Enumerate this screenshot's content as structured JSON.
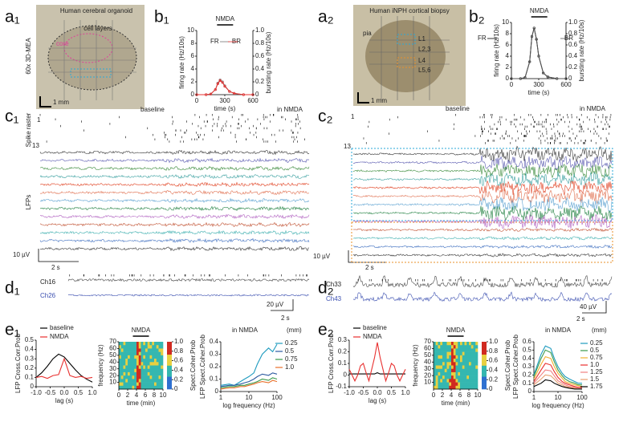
{
  "figure": {
    "panel_labels": {
      "a1": "a₁",
      "b1": "b₁",
      "a2": "a₂",
      "b2": "b₂",
      "c1": "c₁",
      "c2": "c₂",
      "d1": "d₁",
      "d2": "d₂",
      "e1": "e₁",
      "e2": "e₂"
    },
    "a1": {
      "title": "Human cerebral organoid",
      "layers": "cell layers",
      "core": "core",
      "device": "60x 3D-MEA",
      "scale": "1 mm"
    },
    "a2": {
      "title": "Human iNPH cortical biopsy",
      "pia": "pia",
      "layers": [
        "L1",
        "L2,3",
        "L4",
        "L5,6"
      ],
      "scale": "1 mm"
    },
    "c1": {
      "first": "1",
      "last": "13",
      "raster": "Spike raster",
      "lfp": "LFPs",
      "baseline": "baseline",
      "nmda": "in NMDA",
      "vscale": "10 µV",
      "tscale": "2 s"
    },
    "c2": {
      "first": "1",
      "last": "13",
      "baseline": "baseline",
      "nmda": "in NMDA",
      "vscale": "10 µV",
      "tscale": "2 s"
    },
    "d1": {
      "ch_a": "Ch16",
      "ch_b": "Ch26",
      "vscale": "20 µV",
      "tscale": "2 s"
    },
    "d2": {
      "ch_a": "Ch33",
      "ch_b": "Ch43",
      "vscale": "40 µV",
      "tscale": "2 s"
    }
  },
  "chart_data": [
    {
      "type": "line",
      "title": "NMDA",
      "xlabel": "time (s)",
      "ylabel": "firing rate (Hz/10s)",
      "y2label": "bursting rate (Hz/10s)",
      "x": [
        0,
        100,
        150,
        200,
        225,
        250,
        275,
        300,
        350,
        400,
        500,
        600
      ],
      "xlim": [
        0,
        600
      ],
      "xticks": [
        0,
        300,
        600
      ],
      "ylim": [
        0,
        10
      ],
      "yticks": [
        0,
        2,
        4,
        6,
        8,
        10
      ],
      "y2lim": [
        0,
        1
      ],
      "y2ticks": [
        0,
        0.2,
        0.4,
        0.6,
        0.8,
        {
          "value": 1,
          "label": "1.0"
        }
      ],
      "series": [
        {
          "name": "FR",
          "color": "#777777",
          "values": [
            0,
            0,
            0.1,
            0.8,
            1.8,
            2.3,
            2,
            1.4,
            0.5,
            0.2,
            0,
            0
          ]
        },
        {
          "name": "BR",
          "color": "#e8302f",
          "axis": "y2",
          "values": [
            0,
            0,
            0.01,
            0.08,
            0.17,
            0.22,
            0.19,
            0.13,
            0.05,
            0.02,
            0,
            0
          ]
        }
      ]
    },
    {
      "type": "line",
      "title": "NMDA",
      "xlabel": "time (s)",
      "ylabel": "firing rate (Hz/10s)",
      "y2label": "bursting rate (Hz/10s)",
      "x": [
        0,
        100,
        150,
        200,
        225,
        250,
        275,
        300,
        350,
        400,
        500,
        600
      ],
      "xlim": [
        0,
        600
      ],
      "xticks": [
        0,
        300,
        600
      ],
      "ylim": [
        0,
        10
      ],
      "yticks": [
        0,
        2,
        4,
        6,
        8,
        10
      ],
      "y2lim": [
        0,
        1
      ],
      "y2ticks": [
        0,
        0.2,
        0.4,
        0.6,
        0.8,
        {
          "value": 1,
          "label": "1.0"
        }
      ],
      "series": [
        {
          "name": "FR",
          "color": "#000000",
          "values": [
            0,
            0,
            0.2,
            3,
            7.5,
            9,
            7,
            4,
            1,
            0.3,
            0,
            0
          ]
        },
        {
          "name": "BR",
          "color": "#555555",
          "axis": "y2",
          "values": [
            0,
            0,
            0.02,
            0.3,
            0.75,
            0.9,
            0.7,
            0.4,
            0.1,
            0.03,
            0,
            0
          ]
        }
      ]
    },
    {
      "type": "line",
      "xlabel": "lag (s)",
      "ylabel": "LFP Cross.Corr.Prob",
      "x": [
        -1,
        -0.8,
        -0.6,
        -0.4,
        -0.2,
        0,
        0.2,
        0.4,
        0.6,
        0.8,
        1
      ],
      "xlim": [
        -1,
        1
      ],
      "xticks": [
        {
          "value": -1,
          "label": "-1.0"
        },
        -0.5,
        {
          "value": 0,
          "label": "0.0"
        },
        0.5,
        {
          "value": 1,
          "label": "1.0"
        }
      ],
      "ylim": [
        0,
        0.5
      ],
      "yticks": [
        0,
        0.1,
        0.2,
        0.3,
        0.4,
        0.5
      ],
      "series": [
        {
          "name": "baseline",
          "color": "#000000",
          "values": [
            0.1,
            0.15,
            0.22,
            0.3,
            0.35,
            0.32,
            0.25,
            0.18,
            0.12,
            0.08,
            0.05
          ]
        },
        {
          "name": "NMDA",
          "color": "#e8302f",
          "values": [
            0.1,
            0.11,
            0.09,
            0.12,
            0.13,
            0.3,
            0.12,
            0.1,
            0.11,
            0.09,
            0.1
          ]
        }
      ]
    },
    {
      "type": "heatmap",
      "title": "NMDA",
      "xlabel": "time (min)",
      "ylabel": "frequency (Hz)",
      "colorbar_label": "Spect.Coher.Prob",
      "xlim": [
        0,
        10
      ],
      "xticks": [
        0,
        2,
        4,
        6,
        8,
        10
      ],
      "ylim": [
        0,
        70
      ],
      "yticks": [
        10,
        20,
        30,
        40,
        50,
        60,
        70
      ],
      "clim": [
        0,
        1
      ],
      "cticks": [
        0,
        0.2,
        0.4,
        0.6,
        0.8,
        {
          "value": 1,
          "label": "1.0"
        }
      ]
    },
    {
      "type": "line",
      "title": "in NMDA",
      "xlabel": "log frequency (Hz)",
      "ylabel": "LFP Spect.Coher.Prob",
      "log_x": true,
      "legend_title": "(mm)",
      "x": [
        1,
        2,
        3,
        5,
        7,
        10,
        15,
        20,
        30,
        50,
        70,
        100
      ],
      "xlim": [
        1,
        100
      ],
      "xticks": [
        1,
        10,
        100
      ],
      "ylim": [
        0,
        0.4
      ],
      "yticks": [
        0,
        0.1,
        0.2,
        0.3,
        0.4
      ],
      "series": [
        {
          "name": "0.25",
          "color": "#1f9bbf",
          "values": [
            0.05,
            0.06,
            0.05,
            0.08,
            0.1,
            0.12,
            0.15,
            0.22,
            0.3,
            0.35,
            0.32,
            0.38
          ]
        },
        {
          "name": "0.5",
          "color": "#2c5aa0",
          "values": [
            0.04,
            0.05,
            0.05,
            0.06,
            0.07,
            0.08,
            0.1,
            0.12,
            0.14,
            0.13,
            0.15,
            0.14
          ]
        },
        {
          "name": "0.75",
          "color": "#3a9a4a",
          "values": [
            0.03,
            0.04,
            0.04,
            0.05,
            0.05,
            0.06,
            0.07,
            0.08,
            0.1,
            0.09,
            0.11,
            0.1
          ]
        },
        {
          "name": "1.0",
          "color": "#e8702a",
          "values": [
            0.02,
            0.03,
            0.03,
            0.04,
            0.04,
            0.05,
            0.06,
            0.07,
            0.08,
            0.07,
            0.09,
            0.08
          ]
        }
      ]
    },
    {
      "type": "line",
      "xlabel": "lag (s)",
      "ylabel": "LFP Cross.Corr.Prob",
      "x": [
        -1,
        -0.9,
        -0.8,
        -0.7,
        -0.6,
        -0.5,
        -0.4,
        -0.3,
        -0.2,
        -0.1,
        0,
        0.1,
        0.2,
        0.3,
        0.4,
        0.5,
        0.6,
        0.7,
        0.8,
        0.9,
        1
      ],
      "xlim": [
        -1,
        1
      ],
      "xticks": [
        {
          "value": -1,
          "label": "-1.0"
        },
        -0.5,
        {
          "value": 0,
          "label": "0.0"
        },
        0.5,
        {
          "value": 1,
          "label": "1.0"
        }
      ],
      "ylim": [
        -0.1,
        0.3
      ],
      "yticks": [
        -0.1,
        0,
        0.1,
        0.2,
        0.3
      ],
      "series": [
        {
          "name": "baseline",
          "color": "#000000",
          "values": [
            0.01,
            0.01,
            0.01,
            0.01,
            0.01,
            0.01,
            0.01,
            0.01,
            0.01,
            0.01,
            0.02,
            0.01,
            0.01,
            0.01,
            0.01,
            0.01,
            0.01,
            0.01,
            0.01,
            0.01,
            0.01
          ]
        },
        {
          "name": "NMDA",
          "color": "#e8302f",
          "values": [
            0.05,
            0,
            -0.05,
            0,
            0.08,
            0.1,
            0.02,
            -0.05,
            0.05,
            0.15,
            0.28,
            0.15,
            0.05,
            -0.05,
            0.02,
            0.1,
            0.08,
            0,
            -0.05,
            0,
            0.05
          ]
        }
      ]
    },
    {
      "type": "heatmap",
      "title": "NMDA",
      "xlabel": "time (min)",
      "ylabel": "frequency (Hz)",
      "colorbar_label": "Spect.Coher.Prob",
      "xlim": [
        0,
        10
      ],
      "xticks": [
        0,
        2,
        4,
        6,
        8,
        10
      ],
      "ylim": [
        0,
        70
      ],
      "yticks": [
        10,
        20,
        30,
        40,
        50,
        60,
        70
      ],
      "clim": [
        0,
        1
      ],
      "cticks": [
        0,
        0.2,
        0.4,
        0.6,
        0.8,
        {
          "value": 1,
          "label": "1.0"
        }
      ]
    },
    {
      "type": "line",
      "title": "in NMDA",
      "xlabel": "log frequency (Hz)",
      "ylabel": "LFP Spect.Coher.Prob",
      "log_x": true,
      "legend_title": "(mm)",
      "x": [
        1,
        2,
        3,
        5,
        7,
        10,
        15,
        20,
        30,
        50,
        70,
        100
      ],
      "xlim": [
        1,
        100
      ],
      "xticks": [
        1,
        10,
        100
      ],
      "ylim": [
        0,
        0.6
      ],
      "yticks": [
        0,
        0.1,
        0.2,
        0.3,
        0.4,
        0.5,
        0.6
      ],
      "series": [
        {
          "name": "0.25",
          "color": "#1f9bbf",
          "values": [
            0.2,
            0.45,
            0.55,
            0.52,
            0.4,
            0.3,
            0.22,
            0.18,
            0.15,
            0.12,
            0.1,
            0.1
          ]
        },
        {
          "name": "0.5",
          "color": "#3a9a4a",
          "values": [
            0.18,
            0.4,
            0.5,
            0.47,
            0.36,
            0.26,
            0.19,
            0.15,
            0.12,
            0.1,
            0.08,
            0.08
          ]
        },
        {
          "name": "0.75",
          "color": "#f0b030",
          "values": [
            0.15,
            0.33,
            0.42,
            0.4,
            0.3,
            0.22,
            0.16,
            0.12,
            0.1,
            0.08,
            0.07,
            0.06
          ]
        },
        {
          "name": "1.0",
          "color": "#e8302f",
          "values": [
            0.12,
            0.26,
            0.34,
            0.32,
            0.24,
            0.17,
            0.12,
            0.1,
            0.08,
            0.06,
            0.05,
            0.05
          ]
        },
        {
          "name": "1.25",
          "color": "#f08080",
          "values": [
            0.1,
            0.2,
            0.26,
            0.25,
            0.19,
            0.13,
            0.1,
            0.08,
            0.06,
            0.05,
            0.04,
            0.04
          ]
        },
        {
          "name": "1.5",
          "color": "#e8a070",
          "values": [
            0.08,
            0.15,
            0.2,
            0.19,
            0.15,
            0.1,
            0.08,
            0.06,
            0.05,
            0.04,
            0.03,
            0.03
          ]
        },
        {
          "name": "1.75",
          "color": "#000000",
          "values": [
            0.06,
            0.1,
            0.14,
            0.13,
            0.1,
            0.08,
            0.06,
            0.05,
            0.04,
            0.03,
            0.03,
            0.03
          ]
        }
      ]
    }
  ]
}
